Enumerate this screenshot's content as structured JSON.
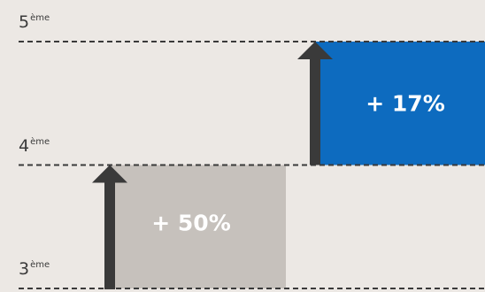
{
  "chart_data": {
    "type": "bar",
    "levels": [
      {
        "value": 3,
        "number": "3",
        "suffix": "ème"
      },
      {
        "value": 4,
        "number": "4",
        "suffix": "ème"
      },
      {
        "value": 5,
        "number": "5",
        "suffix": "ème"
      }
    ],
    "bars": [
      {
        "label": "+ 50%",
        "from": 3,
        "to": 4,
        "color": "#c6c1bc",
        "arrow_color": "#3a3a3a"
      },
      {
        "label": "+ 17%",
        "from": 4,
        "to": 5,
        "color": "#0d6bbf",
        "arrow_color": "#3a3a3a"
      }
    ],
    "ylim": [
      3,
      5
    ],
    "grid": true,
    "grid_style": "dashed",
    "grid_color": "#3a3a3a"
  }
}
